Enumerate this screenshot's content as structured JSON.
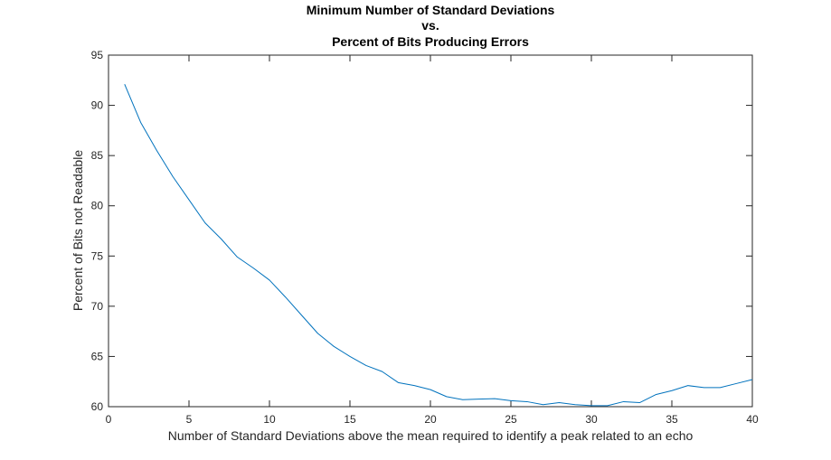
{
  "chart_data": {
    "type": "line",
    "title_lines": [
      "Minimum Number of Standard Deviations",
      "vs.",
      "Percent of Bits Producing Errors"
    ],
    "xlabel": "Number of Standard Deviations above the mean required to identify a peak related to an echo",
    "ylabel": "Percent of Bits not Readable",
    "xlim": [
      0,
      40
    ],
    "ylim": [
      60,
      95
    ],
    "xticks": [
      0,
      5,
      10,
      15,
      20,
      25,
      30,
      35,
      40
    ],
    "yticks": [
      60,
      65,
      70,
      75,
      80,
      85,
      90,
      95
    ],
    "grid": false,
    "legend": "none",
    "series": [
      {
        "color": "#0072BD",
        "x": [
          1,
          2,
          3,
          4,
          5,
          6,
          7,
          8,
          9,
          10,
          11,
          12,
          13,
          14,
          15,
          16,
          17,
          18,
          19,
          20,
          21,
          22,
          23,
          24,
          25,
          26,
          27,
          28,
          29,
          30,
          31,
          32,
          33,
          34,
          35,
          36,
          37,
          38,
          39,
          40
        ],
        "y": [
          92.1,
          88.3,
          85.5,
          82.9,
          80.6,
          78.3,
          76.7,
          74.9,
          73.8,
          72.6,
          70.9,
          69.1,
          67.3,
          66.0,
          65.0,
          64.1,
          63.5,
          62.4,
          62.1,
          61.7,
          61.0,
          60.7,
          60.75,
          60.8,
          60.6,
          60.5,
          60.2,
          60.4,
          60.2,
          60.1,
          60.1,
          60.5,
          60.4,
          61.2,
          61.6,
          62.1,
          61.9,
          61.9,
          62.3,
          62.7
        ]
      }
    ]
  }
}
